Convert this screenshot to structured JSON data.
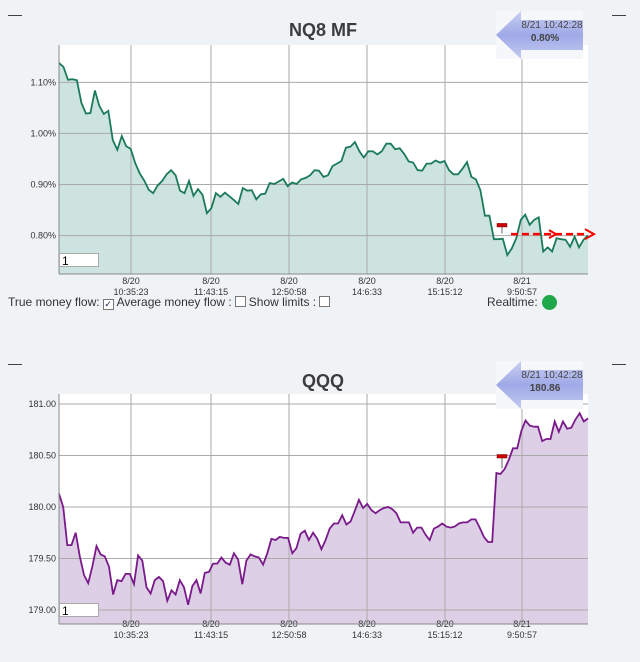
{
  "chart_data": [
    {
      "type": "area",
      "title": "NQ8 MF",
      "color": "#1a7a5a",
      "fill": "#cde3df",
      "ylim": [
        0.725,
        1.173
      ],
      "y_ticks": [
        "1.10%",
        "1.00%",
        "0.90%",
        "0.80%"
      ],
      "y_tick_values": [
        1.1,
        1.0,
        0.9,
        0.8
      ],
      "x_ticks": [
        [
          "8/20",
          "10:35:23"
        ],
        [
          "8/20",
          "11:43:15"
        ],
        [
          "8/20",
          "12:50:58"
        ],
        [
          "8/20",
          "14:6:33"
        ],
        [
          "8/20",
          "15:15:12"
        ],
        [
          "8/21",
          "9:50:57"
        ]
      ],
      "grid": true,
      "values": [
        1.138,
        1.13,
        1.105,
        1.106,
        1.104,
        1.06,
        1.039,
        1.04,
        1.084,
        1.054,
        1.038,
        1.044,
        0.987,
        0.968,
        0.995,
        0.975,
        0.97,
        0.942,
        0.922,
        0.908,
        0.89,
        0.883,
        0.898,
        0.907,
        0.92,
        0.928,
        0.918,
        0.888,
        0.883,
        0.907,
        0.878,
        0.891,
        0.88,
        0.844,
        0.854,
        0.883,
        0.876,
        0.884,
        0.877,
        0.87,
        0.862,
        0.893,
        0.888,
        0.889,
        0.871,
        0.881,
        0.882,
        0.903,
        0.901,
        0.906,
        0.911,
        0.897,
        0.904,
        0.901,
        0.91,
        0.913,
        0.918,
        0.928,
        0.927,
        0.915,
        0.918,
        0.936,
        0.941,
        0.946,
        0.972,
        0.974,
        0.983,
        0.965,
        0.953,
        0.965,
        0.965,
        0.959,
        0.965,
        0.98,
        0.98,
        0.969,
        0.971,
        0.96,
        0.945,
        0.943,
        0.928,
        0.927,
        0.941,
        0.941,
        0.947,
        0.943,
        0.946,
        0.928,
        0.92,
        0.92,
        0.931,
        0.944,
        0.915,
        0.91,
        0.889,
        0.839,
        0.839,
        0.793,
        0.793,
        0.794,
        0.762,
        0.775,
        0.795,
        0.831,
        0.841,
        0.821,
        0.831,
        0.836,
        0.769,
        0.777,
        0.769,
        0.795,
        0.793,
        0.792,
        0.778,
        0.798,
        0.777,
        0.792,
        0.801
      ],
      "marker_value": 0.82,
      "projection_value": 0.803,
      "flag": {
        "time": "8/21 10:42:28",
        "value": "0.80%"
      },
      "input_value": "1"
    },
    {
      "type": "area",
      "title": "QQQ",
      "color": "#7a1a8a",
      "fill": "#ddd0e6",
      "ylim": [
        178.864,
        181.097
      ],
      "y_ticks": [
        "181.00",
        "180.50",
        "180.00",
        "179.50",
        "179.00"
      ],
      "y_tick_values": [
        181.0,
        180.5,
        180.0,
        179.5,
        179.0
      ],
      "x_ticks": [
        [
          "8/20",
          "10:35:23"
        ],
        [
          "8/20",
          "11:43:15"
        ],
        [
          "8/20",
          "12:50:58"
        ],
        [
          "8/20",
          "14:6:33"
        ],
        [
          "8/20",
          "15:15:12"
        ],
        [
          "8/21",
          "9:50:57"
        ]
      ],
      "grid": true,
      "values": [
        180.13,
        180.0,
        179.63,
        179.63,
        179.75,
        179.52,
        179.34,
        179.26,
        179.42,
        179.62,
        179.54,
        179.52,
        179.42,
        179.15,
        179.29,
        179.28,
        179.35,
        179.35,
        179.25,
        179.53,
        179.48,
        179.22,
        179.16,
        179.29,
        179.32,
        179.28,
        179.09,
        179.19,
        179.15,
        179.29,
        179.22,
        179.05,
        179.23,
        179.29,
        179.16,
        179.36,
        179.37,
        179.45,
        179.45,
        179.51,
        179.46,
        179.44,
        179.55,
        179.49,
        179.25,
        179.48,
        179.54,
        179.52,
        179.51,
        179.44,
        179.55,
        179.69,
        179.68,
        179.71,
        179.7,
        179.7,
        179.55,
        179.6,
        179.74,
        179.77,
        179.68,
        179.75,
        179.69,
        179.59,
        179.68,
        179.79,
        179.84,
        179.84,
        179.92,
        179.83,
        179.86,
        179.96,
        180.07,
        179.99,
        180.03,
        179.97,
        179.94,
        179.97,
        179.99,
        180.0,
        179.98,
        179.94,
        179.85,
        179.85,
        179.85,
        179.75,
        179.8,
        179.8,
        179.73,
        179.68,
        179.79,
        179.81,
        179.84,
        179.81,
        179.8,
        179.81,
        179.84,
        179.85,
        179.85,
        179.88,
        179.88,
        179.8,
        179.71,
        179.66,
        179.66,
        180.33,
        180.32,
        180.37,
        180.46,
        180.57,
        180.57,
        180.74,
        180.84,
        180.79,
        180.78,
        180.78,
        180.64,
        180.66,
        180.66,
        180.83,
        180.73,
        180.83,
        180.76,
        180.77,
        180.85,
        180.91,
        180.83,
        180.86
      ],
      "jump_index": 105,
      "marker_value": 180.49,
      "flag": {
        "time": "8/21 10:42:28",
        "value": "180.86"
      },
      "input_value": "1"
    }
  ],
  "controls": {
    "true_money_flow_label": "True money flow:",
    "true_money_flow_checked": true,
    "average_money_flow_label": "Average money flow :",
    "average_money_flow_checked": false,
    "show_limits_label": "Show limits :",
    "show_limits_checked": false,
    "realtime_label": "Realtime:",
    "realtime_color": "#1ea84a",
    "check_mark": "✓"
  },
  "window": {
    "minimize_glyph": "—"
  }
}
